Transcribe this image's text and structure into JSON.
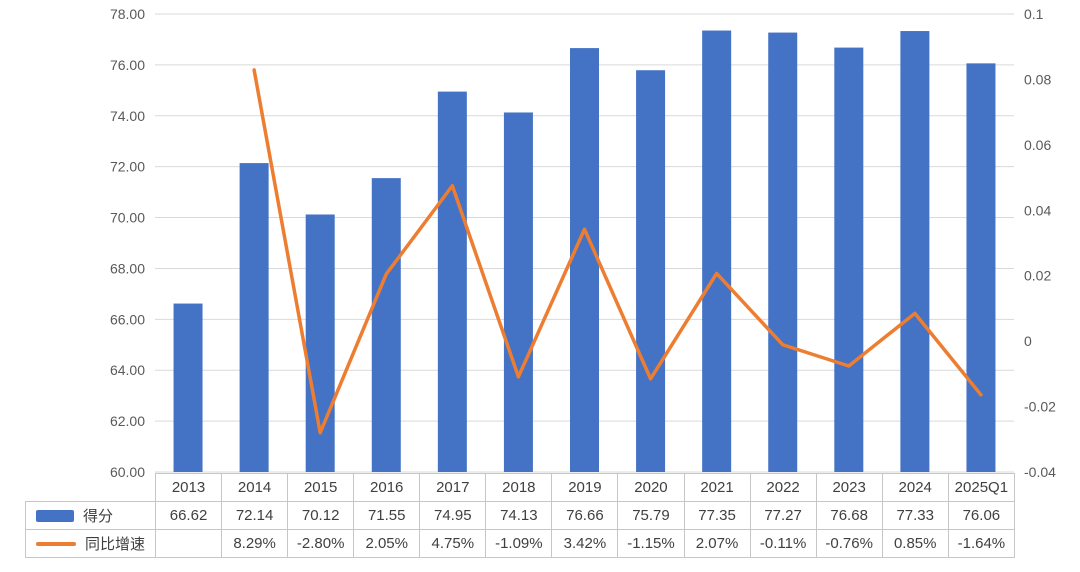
{
  "chart_data": {
    "type": "combo",
    "subtype": [
      "bar",
      "line"
    ],
    "title": "",
    "categories": [
      "2013",
      "2014",
      "2015",
      "2016",
      "2017",
      "2018",
      "2019",
      "2020",
      "2021",
      "2022",
      "2023",
      "2024",
      "2025Q1"
    ],
    "series": [
      {
        "name": "得分",
        "type": "bar",
        "axis": "left",
        "color": "#4472C4",
        "values": [
          66.62,
          72.14,
          70.12,
          71.55,
          74.95,
          74.13,
          76.66,
          75.79,
          77.35,
          77.27,
          76.68,
          77.33,
          76.06
        ]
      },
      {
        "name": "同比增速",
        "type": "line",
        "axis": "right",
        "color": "#ED7D31",
        "values": [
          null,
          0.0829,
          -0.028,
          0.0205,
          0.0475,
          -0.0109,
          0.0342,
          -0.0115,
          0.0207,
          -0.0011,
          -0.0076,
          0.0085,
          -0.0164
        ]
      }
    ],
    "left_axis": {
      "min": 60,
      "max": 78,
      "tick_labels": [
        "78.00",
        "76.00",
        "74.00",
        "72.00",
        "70.00",
        "68.00",
        "66.00",
        "64.00",
        "62.00",
        "60.00"
      ]
    },
    "right_axis": {
      "min": -0.04,
      "max": 0.1,
      "tick_labels": [
        "0.1",
        "0.08",
        "0.06",
        "0.04",
        "0.02",
        "0",
        "-0.02",
        "-0.04"
      ]
    },
    "grid": "horizontal",
    "legend_position": "data-table-left"
  },
  "data_table": {
    "year_header": [
      "2013",
      "2014",
      "2015",
      "2016",
      "2017",
      "2018",
      "2019",
      "2020",
      "2021",
      "2022",
      "2023",
      "2024",
      "2025Q1"
    ],
    "rows": [
      {
        "label": "得分",
        "swatch": "bar",
        "cells": [
          "66.62",
          "72.14",
          "70.12",
          "71.55",
          "74.95",
          "74.13",
          "76.66",
          "75.79",
          "77.35",
          "77.27",
          "76.68",
          "77.33",
          "76.06"
        ]
      },
      {
        "label": "同比增速",
        "swatch": "line",
        "cells": [
          "",
          "8.29%",
          "-2.80%",
          "2.05%",
          "4.75%",
          "-1.09%",
          "3.42%",
          "-1.15%",
          "2.07%",
          "-0.11%",
          "-0.76%",
          "0.85%",
          "-1.64%"
        ]
      }
    ]
  },
  "colors": {
    "bar": "#4472C4",
    "line": "#ED7D31",
    "gridline": "#D9D9D9",
    "table_border": "#C6C6C6",
    "axis_text": "#595959",
    "table_text": "#404040"
  }
}
